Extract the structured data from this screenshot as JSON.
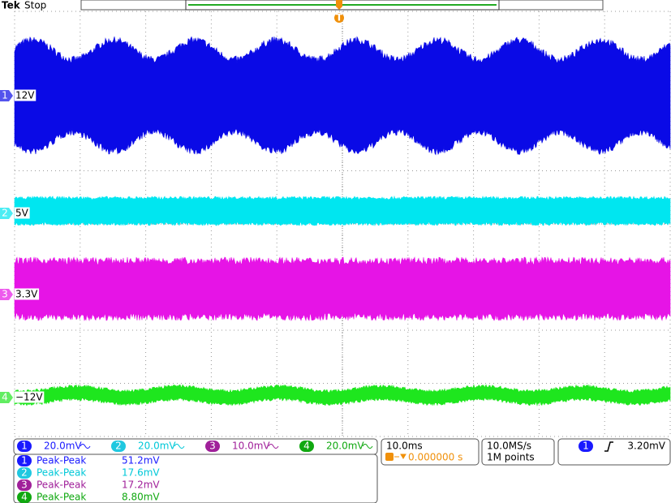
{
  "header": {
    "brand": "Tek",
    "status": "Stop"
  },
  "trigger_marker": "T",
  "channels": [
    {
      "number": "1",
      "label": "12V",
      "scale": "20.0mV",
      "color": "#0a0ae6",
      "text_color": "#1a1aff"
    },
    {
      "number": "2",
      "label": "5V",
      "scale": "20.0mV",
      "color": "#00e6f0",
      "text_color": "#00c8d8"
    },
    {
      "number": "3",
      "label": "3.3V",
      "scale": "10.0mV",
      "color": "#e614e6",
      "text_color": "#a0209a"
    },
    {
      "number": "4",
      "label": "−12V",
      "scale": "20.0mV",
      "color": "#1ee61e",
      "text_color": "#10a810"
    }
  ],
  "timebase": {
    "scale": "10.0ms",
    "trigger_position": "0.000000 s"
  },
  "acquisition": {
    "sample_rate": "10.0MS/s",
    "record_length": "1M points"
  },
  "trigger": {
    "source": "1",
    "level": "3.20mV"
  },
  "measurements": [
    {
      "channel": "1",
      "name": "Peak-Peak",
      "value": "51.2mV"
    },
    {
      "channel": "2",
      "name": "Peak-Peak",
      "value": "17.6mV"
    },
    {
      "channel": "3",
      "name": "Peak-Peak",
      "value": "17.2mV"
    },
    {
      "channel": "4",
      "name": "Peak-Peak",
      "value": "8.80mV"
    }
  ]
}
